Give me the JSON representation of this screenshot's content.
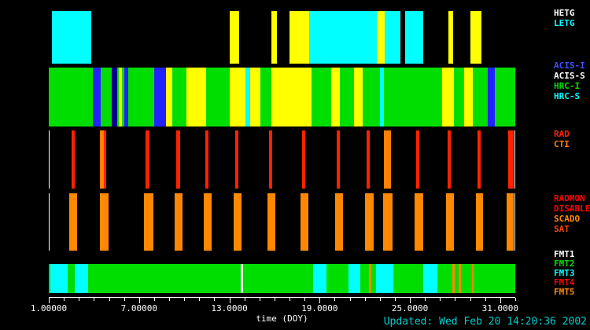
{
  "chart_data": {
    "type": "bar",
    "subtype": "timeline-bands",
    "title": "",
    "xlabel": "time (DOY)",
    "xlim": [
      1,
      32
    ],
    "grid": false,
    "legend_position": "right",
    "x_ticks": [
      {
        "value": 1,
        "label": "1.00000"
      },
      {
        "value": 7,
        "label": "7.00000"
      },
      {
        "value": 13,
        "label": "13.0000"
      },
      {
        "value": 19,
        "label": "19.0000"
      },
      {
        "value": 25,
        "label": "25.0000"
      },
      {
        "value": 31,
        "label": "31.0000"
      }
    ],
    "bands": [
      {
        "name": "gratings",
        "base_color": "#000000",
        "labels": [
          {
            "text": "HETG",
            "color": "#FFFFFF"
          },
          {
            "text": "LETG",
            "color": "#00FFFF"
          }
        ],
        "segments": [
          {
            "start": 1.2,
            "end": 3.8,
            "color": "#00FFFF"
          },
          {
            "start": 13.0,
            "end": 13.65,
            "color": "#FFFF00"
          },
          {
            "start": 15.8,
            "end": 16.15,
            "color": "#FFFF00"
          },
          {
            "start": 17.0,
            "end": 18.3,
            "color": "#FFFF00"
          },
          {
            "start": 18.3,
            "end": 22.8,
            "color": "#00FFFF"
          },
          {
            "start": 22.8,
            "end": 23.3,
            "color": "#FFFF00"
          },
          {
            "start": 23.3,
            "end": 24.35,
            "color": "#00FFFF"
          },
          {
            "start": 24.7,
            "end": 25.9,
            "color": "#00FFFF"
          },
          {
            "start": 27.55,
            "end": 27.85,
            "color": "#FFFF00"
          },
          {
            "start": 29.0,
            "end": 29.75,
            "color": "#FFFF00"
          }
        ]
      },
      {
        "name": "instruments",
        "base_color": "#00DE00",
        "labels": [
          {
            "text": "ACIS-I",
            "color": "#3C50FF"
          },
          {
            "text": "ACIS-S",
            "color": "#FFFFFF"
          },
          {
            "text": "HRC-I",
            "color": "#00DE00"
          },
          {
            "text": "HRC-S",
            "color": "#00FFFF"
          }
        ],
        "segments": [
          {
            "start": 3.95,
            "end": 4.45,
            "color": "#2222FF"
          },
          {
            "start": 5.2,
            "end": 5.55,
            "color": "#00008B"
          },
          {
            "start": 5.65,
            "end": 5.85,
            "color": "#FFFF00"
          },
          {
            "start": 6.0,
            "end": 6.3,
            "color": "#2222FF"
          },
          {
            "start": 8.0,
            "end": 8.8,
            "color": "#2222FF"
          },
          {
            "start": 8.8,
            "end": 9.2,
            "color": "#FFFF00"
          },
          {
            "start": 10.15,
            "end": 11.45,
            "color": "#FFFF00"
          },
          {
            "start": 13.0,
            "end": 14.05,
            "color": "#FFFF00"
          },
          {
            "start": 14.05,
            "end": 14.4,
            "color": "#00FFFF"
          },
          {
            "start": 14.4,
            "end": 15.05,
            "color": "#FFFF00"
          },
          {
            "start": 15.8,
            "end": 18.45,
            "color": "#FFFF00"
          },
          {
            "start": 19.75,
            "end": 20.35,
            "color": "#FFFF00"
          },
          {
            "start": 21.3,
            "end": 21.85,
            "color": "#FFFF00"
          },
          {
            "start": 23.0,
            "end": 23.25,
            "color": "#00FFFF"
          },
          {
            "start": 27.15,
            "end": 27.9,
            "color": "#FFFF00"
          },
          {
            "start": 28.6,
            "end": 29.2,
            "color": "#FFFF00"
          },
          {
            "start": 30.15,
            "end": 30.65,
            "color": "#2222FF"
          }
        ]
      },
      {
        "name": "rad-cti",
        "base_color": "#000000",
        "boxed": true,
        "labels": [
          {
            "text": "RAD",
            "color": "#FF2200"
          },
          {
            "text": "CTI",
            "color": "#FF7F00"
          }
        ],
        "segments": [
          {
            "start": 2.45,
            "end": 2.7,
            "color": "#FF2200"
          },
          {
            "start": 4.35,
            "end": 4.6,
            "color": "#FF7F00"
          },
          {
            "start": 4.6,
            "end": 4.8,
            "color": "#FF2200"
          },
          {
            "start": 7.4,
            "end": 7.65,
            "color": "#FF2200"
          },
          {
            "start": 9.45,
            "end": 9.7,
            "color": "#FF2200"
          },
          {
            "start": 11.4,
            "end": 11.6,
            "color": "#FF2200"
          },
          {
            "start": 13.4,
            "end": 13.6,
            "color": "#FF2200"
          },
          {
            "start": 15.65,
            "end": 15.85,
            "color": "#FF2200"
          },
          {
            "start": 17.85,
            "end": 18.05,
            "color": "#FF2200"
          },
          {
            "start": 20.15,
            "end": 20.35,
            "color": "#FF2200"
          },
          {
            "start": 22.15,
            "end": 22.35,
            "color": "#FF2200"
          },
          {
            "start": 23.3,
            "end": 23.75,
            "color": "#FF7F00"
          },
          {
            "start": 25.45,
            "end": 25.65,
            "color": "#FF2200"
          },
          {
            "start": 27.55,
            "end": 27.75,
            "color": "#FF2200"
          },
          {
            "start": 29.55,
            "end": 29.75,
            "color": "#FF2200"
          },
          {
            "start": 31.6,
            "end": 31.95,
            "color": "#FF2200"
          }
        ]
      },
      {
        "name": "radmon",
        "base_color": "#000000",
        "boxed": true,
        "labels": [
          {
            "text": "RADMON",
            "color": "#FF0000"
          },
          {
            "text": "DISABLED",
            "color": "#FF0000"
          },
          {
            "text": "SCADO",
            "color": "#FF8800"
          },
          {
            "text": "SAT",
            "color": "#FF4400"
          }
        ],
        "segments": [
          {
            "start": 2.3,
            "end": 2.85,
            "color": "#FF8800"
          },
          {
            "start": 4.35,
            "end": 4.95,
            "color": "#FF8800"
          },
          {
            "start": 7.3,
            "end": 7.9,
            "color": "#FF8800"
          },
          {
            "start": 9.35,
            "end": 9.85,
            "color": "#FF8800"
          },
          {
            "start": 11.3,
            "end": 11.8,
            "color": "#FF8800"
          },
          {
            "start": 13.3,
            "end": 13.8,
            "color": "#FF8800"
          },
          {
            "start": 15.55,
            "end": 16.05,
            "color": "#FF8800"
          },
          {
            "start": 17.75,
            "end": 18.25,
            "color": "#FF8800"
          },
          {
            "start": 20.05,
            "end": 20.55,
            "color": "#FF8800"
          },
          {
            "start": 22.05,
            "end": 22.6,
            "color": "#FF8800"
          },
          {
            "start": 23.25,
            "end": 23.85,
            "color": "#FF8800"
          },
          {
            "start": 25.35,
            "end": 25.9,
            "color": "#FF8800"
          },
          {
            "start": 27.45,
            "end": 27.95,
            "color": "#FF8800"
          },
          {
            "start": 29.45,
            "end": 29.9,
            "color": "#FF8800"
          },
          {
            "start": 31.5,
            "end": 31.95,
            "color": "#FF8800"
          }
        ]
      },
      {
        "name": "fmt",
        "base_color": "#00DE00",
        "labels": [
          {
            "text": "FMT1",
            "color": "#FFFFFF"
          },
          {
            "text": "FMT2",
            "color": "#00DE00"
          },
          {
            "text": "FMT3",
            "color": "#00FFFF"
          },
          {
            "text": "FMT4",
            "color": "#FF0000"
          },
          {
            "text": "FMT5",
            "color": "#FF8800"
          }
        ],
        "segments": [
          {
            "start": 1.1,
            "end": 2.25,
            "color": "#00FFFF"
          },
          {
            "start": 2.75,
            "end": 3.6,
            "color": "#00FFFF"
          },
          {
            "start": 13.78,
            "end": 13.9,
            "color": "#FFFFFF"
          },
          {
            "start": 18.55,
            "end": 19.45,
            "color": "#00FFFF"
          },
          {
            "start": 20.9,
            "end": 21.7,
            "color": "#00FFFF"
          },
          {
            "start": 22.3,
            "end": 22.45,
            "color": "#FF8800"
          },
          {
            "start": 22.75,
            "end": 23.9,
            "color": "#00FFFF"
          },
          {
            "start": 25.9,
            "end": 26.8,
            "color": "#00FFFF"
          },
          {
            "start": 27.8,
            "end": 27.95,
            "color": "#FF8800"
          },
          {
            "start": 28.25,
            "end": 28.4,
            "color": "#FF8800"
          },
          {
            "start": 29.1,
            "end": 29.25,
            "color": "#FF8800"
          }
        ]
      }
    ]
  },
  "footer": {
    "updated": "Updated: Wed Feb 20 14:20:36 2002",
    "updated_color": "#00CCCC"
  },
  "colors": {
    "background": "#000000",
    "axis": "#FFFFFF",
    "tick_text": "#FFFFFF"
  }
}
